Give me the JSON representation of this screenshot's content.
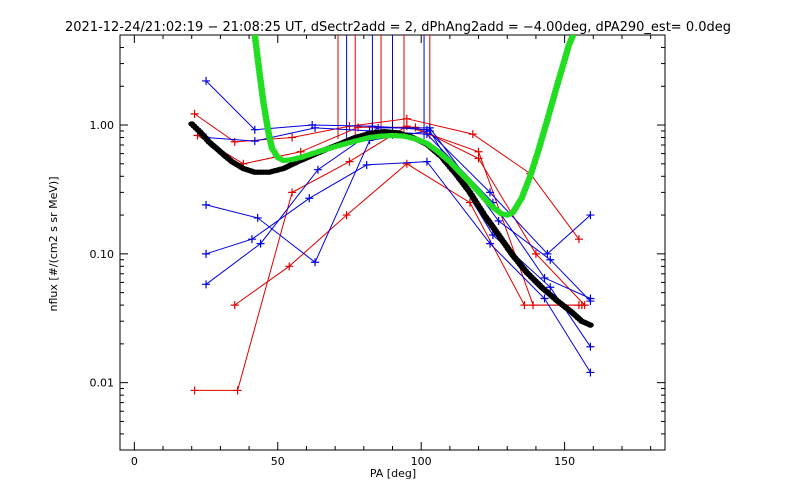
{
  "chart_data": {
    "type": "line",
    "title": "2021-12-24/21:02:19 − 21:08:25 UT, dSectr2add = 2, dPhAng2add = −4.00deg, dPA290_est=   0.0deg",
    "xlabel": "PA [deg]",
    "ylabel": "nflux [#/(cm2 s sr MeV)]",
    "xlim": [
      -5,
      185
    ],
    "ylim": [
      0.003,
      5.0
    ],
    "yscale": "log",
    "x_ticks": [
      0,
      50,
      100,
      150
    ],
    "x_tick_labels": [
      "0",
      "50",
      "100",
      "150"
    ],
    "y_ticks": [
      0.01,
      0.1,
      1.0
    ],
    "y_tick_labels": [
      "0.01",
      "0.10",
      "1.00"
    ],
    "grid": false,
    "legend": "none",
    "colors": {
      "red_series": "#e00000",
      "blue_series": "#0000e0",
      "fit_green": "#22dd22",
      "fit_black": "#000000"
    },
    "series": [
      {
        "color": "red",
        "x": [
          21,
          35,
          55,
          75,
          95,
          118,
          138,
          155
        ],
        "y": [
          1.22,
          0.74,
          0.8,
          0.98,
          1.12,
          0.85,
          0.42,
          0.13
        ]
      },
      {
        "color": "red",
        "x": [
          22,
          38,
          58,
          78,
          98,
          120,
          140,
          157
        ],
        "y": [
          0.83,
          0.5,
          0.62,
          0.96,
          0.96,
          0.55,
          0.1,
          0.04
        ]
      },
      {
        "color": "red",
        "x": [
          21,
          36,
          55,
          75,
          95,
          120,
          139,
          155
        ],
        "y": [
          0.0087,
          0.0087,
          0.3,
          0.52,
          0.98,
          0.62,
          0.04,
          0.04
        ]
      },
      {
        "color": "red",
        "x": [
          35,
          54,
          74,
          95,
          117,
          136,
          156
        ],
        "y": [
          0.04,
          0.08,
          0.2,
          0.5,
          0.25,
          0.04,
          0.04
        ]
      },
      {
        "color": "blue",
        "x": [
          25,
          42,
          62,
          83,
          102,
          124,
          144,
          159
        ],
        "y": [
          2.2,
          0.92,
          1.0,
          0.98,
          0.92,
          0.3,
          0.1,
          0.2
        ]
      },
      {
        "color": "blue",
        "x": [
          25,
          42,
          63,
          82,
          102,
          125,
          143,
          159
        ],
        "y": [
          0.8,
          0.75,
          0.95,
          0.9,
          0.85,
          0.25,
          0.065,
          0.045
        ]
      },
      {
        "color": "blue",
        "x": [
          25,
          43,
          63,
          82,
          103,
          125,
          145,
          159
        ],
        "y": [
          0.24,
          0.19,
          0.086,
          0.76,
          0.9,
          0.14,
          0.055,
          0.019
        ]
      },
      {
        "color": "blue",
        "x": [
          25,
          41,
          61,
          81,
          102,
          124,
          143,
          159
        ],
        "y": [
          0.1,
          0.13,
          0.27,
          0.49,
          0.52,
          0.12,
          0.045,
          0.012
        ]
      },
      {
        "color": "blue",
        "x": [
          25,
          44,
          64,
          85,
          103,
          127,
          145,
          159
        ],
        "y": [
          0.058,
          0.12,
          0.45,
          0.95,
          0.95,
          0.18,
          0.09,
          0.043
        ]
      }
    ],
    "fit_black": {
      "x": [
        20,
        23,
        26,
        30,
        34,
        38,
        42,
        47,
        52,
        57,
        62,
        67,
        72,
        77,
        82,
        87,
        92,
        97,
        102,
        107,
        112,
        117,
        122,
        127,
        132,
        137,
        142,
        147,
        152,
        156,
        159
      ],
      "y": [
        1.02,
        0.88,
        0.74,
        0.62,
        0.52,
        0.46,
        0.43,
        0.43,
        0.46,
        0.52,
        0.58,
        0.65,
        0.72,
        0.8,
        0.86,
        0.89,
        0.87,
        0.8,
        0.71,
        0.57,
        0.42,
        0.3,
        0.2,
        0.14,
        0.097,
        0.071,
        0.055,
        0.044,
        0.036,
        0.03,
        0.028
      ]
    },
    "fit_green": {
      "x": [
        42,
        43,
        44,
        45,
        46,
        47,
        48,
        50,
        52,
        55,
        58,
        62,
        66,
        70,
        74,
        78,
        82,
        86,
        90,
        94,
        98,
        102,
        106,
        110,
        114,
        118,
        122,
        125,
        128,
        130,
        132,
        135,
        138,
        141,
        144,
        147,
        150,
        151.5,
        153
      ],
      "y": [
        5.0,
        3.3,
        2.2,
        1.5,
        1.1,
        0.82,
        0.66,
        0.56,
        0.53,
        0.54,
        0.56,
        0.6,
        0.64,
        0.68,
        0.72,
        0.76,
        0.8,
        0.82,
        0.83,
        0.82,
        0.78,
        0.72,
        0.62,
        0.52,
        0.42,
        0.34,
        0.27,
        0.23,
        0.205,
        0.2,
        0.21,
        0.27,
        0.4,
        0.65,
        1.1,
        1.9,
        3.2,
        4.2,
        5.0
      ]
    },
    "marker_lines": {
      "x": [
        71,
        74,
        77,
        83,
        86,
        90,
        94,
        101,
        103
      ],
      "y_from": 0.78,
      "y_to": 5.0
    }
  }
}
